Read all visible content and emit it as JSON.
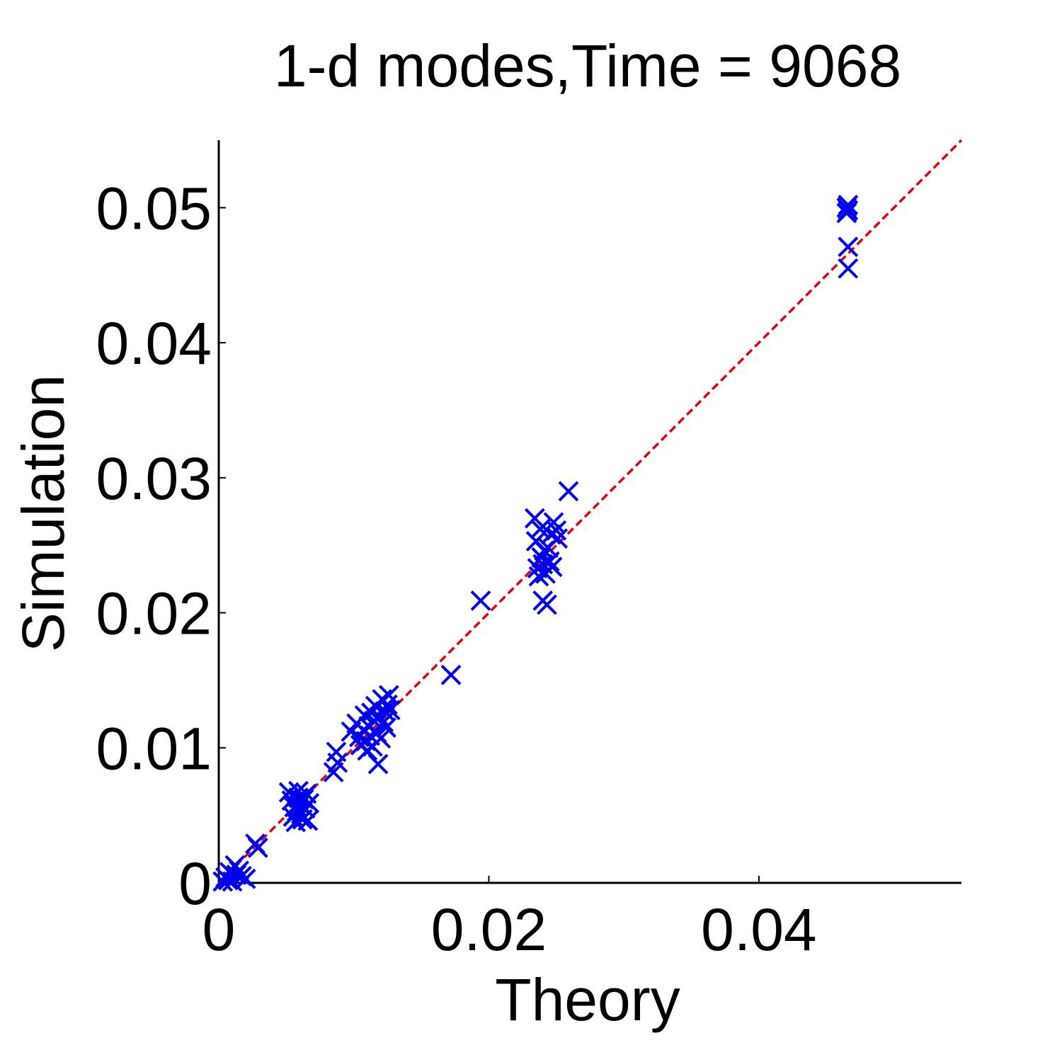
{
  "chart_data": {
    "type": "scatter",
    "title": "1-d modes,Time = 9068",
    "xlabel": "Theory",
    "ylabel": "Simulation",
    "xlim": [
      0,
      0.055
    ],
    "ylim": [
      0,
      0.055
    ],
    "xticks": [
      0,
      0.02,
      0.04
    ],
    "xtick_labels": [
      "0",
      "0.02",
      "0.04"
    ],
    "yticks": [
      0,
      0.01,
      0.02,
      0.03,
      0.04,
      0.05
    ],
    "ytick_labels": [
      "0",
      "0.01",
      "0.02",
      "0.03",
      "0.04",
      "0.05"
    ],
    "grid": false,
    "legend": "none",
    "reference_line": {
      "x": [
        0,
        0.055
      ],
      "y": [
        0,
        0.055
      ],
      "style": "dashed",
      "color": "#e8000b"
    },
    "series": [
      {
        "marker": "x",
        "color": "#0000ee",
        "points": [
          [
            0.0003,
            0.0001
          ],
          [
            0.0005,
            0.0004
          ],
          [
            0.0007,
            0.0002
          ],
          [
            0.0008,
            0.0008
          ],
          [
            0.001,
            0.0001
          ],
          [
            0.0012,
            0.0013
          ],
          [
            0.0013,
            0.0006
          ],
          [
            0.0015,
            0.0009
          ],
          [
            0.0017,
            0.0005
          ],
          [
            0.002,
            0.0003
          ],
          [
            0.0027,
            0.0029
          ],
          [
            0.0029,
            0.0026
          ],
          [
            0.0052,
            0.0067
          ],
          [
            0.0054,
            0.0061
          ],
          [
            0.0055,
            0.0049
          ],
          [
            0.0056,
            0.0056
          ],
          [
            0.0057,
            0.0045
          ],
          [
            0.0058,
            0.0053
          ],
          [
            0.0059,
            0.0063
          ],
          [
            0.0059,
            0.0068
          ],
          [
            0.006,
            0.0058
          ],
          [
            0.0061,
            0.0051
          ],
          [
            0.0062,
            0.0047
          ],
          [
            0.0063,
            0.0062
          ],
          [
            0.0064,
            0.0055
          ],
          [
            0.0065,
            0.0066
          ],
          [
            0.0066,
            0.0046
          ],
          [
            0.0067,
            0.0059
          ],
          [
            0.0085,
            0.0082
          ],
          [
            0.0087,
            0.0097
          ],
          [
            0.0088,
            0.0089
          ],
          [
            0.0098,
            0.0112
          ],
          [
            0.0102,
            0.0118
          ],
          [
            0.0104,
            0.0108
          ],
          [
            0.0105,
            0.0102
          ],
          [
            0.0107,
            0.0113
          ],
          [
            0.0108,
            0.0124
          ],
          [
            0.0109,
            0.0105
          ],
          [
            0.011,
            0.0098
          ],
          [
            0.0111,
            0.0116
          ],
          [
            0.0112,
            0.0109
          ],
          [
            0.0113,
            0.0126
          ],
          [
            0.0114,
            0.0101
          ],
          [
            0.0115,
            0.012
          ],
          [
            0.0116,
            0.0131
          ],
          [
            0.0117,
            0.0111
          ],
          [
            0.0118,
            0.0088
          ],
          [
            0.0119,
            0.0123
          ],
          [
            0.012,
            0.0107
          ],
          [
            0.0121,
            0.0136
          ],
          [
            0.0122,
            0.0119
          ],
          [
            0.0123,
            0.0127
          ],
          [
            0.0124,
            0.0115
          ],
          [
            0.0125,
            0.0132
          ],
          [
            0.0126,
            0.0139
          ],
          [
            0.0127,
            0.0128
          ],
          [
            0.0172,
            0.0154
          ],
          [
            0.0194,
            0.0209
          ],
          [
            0.0234,
            0.027
          ],
          [
            0.0235,
            0.0253
          ],
          [
            0.0236,
            0.0233
          ],
          [
            0.0237,
            0.0227
          ],
          [
            0.0238,
            0.0262
          ],
          [
            0.0239,
            0.0241
          ],
          [
            0.024,
            0.0236
          ],
          [
            0.024,
            0.0209
          ],
          [
            0.0241,
            0.0246
          ],
          [
            0.0242,
            0.0229
          ],
          [
            0.0243,
            0.0206
          ],
          [
            0.0244,
            0.0248
          ],
          [
            0.0245,
            0.0238
          ],
          [
            0.0246,
            0.0258
          ],
          [
            0.0247,
            0.0234
          ],
          [
            0.0248,
            0.0267
          ],
          [
            0.025,
            0.0261
          ],
          [
            0.0251,
            0.0255
          ],
          [
            0.0259,
            0.029
          ],
          [
            0.0465,
            0.05
          ],
          [
            0.0465,
            0.0496
          ],
          [
            0.0466,
            0.0502
          ],
          [
            0.0466,
            0.0498
          ],
          [
            0.0466,
            0.0471
          ],
          [
            0.0466,
            0.0455
          ]
        ]
      }
    ]
  }
}
